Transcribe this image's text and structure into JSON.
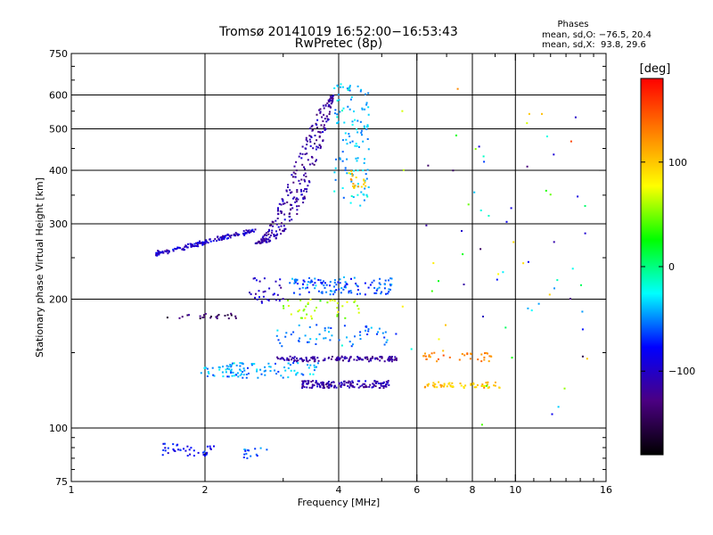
{
  "chart_data": {
    "type": "scatter",
    "title": "Tromsø 20141019 16:52:00−16:53:43",
    "subtitle": "RwPretec (8p)",
    "xlabel": "Frequency [MHz]",
    "ylabel": "Stationary phase Virtual Height [km]",
    "x_scale": "log",
    "y_scale": "log",
    "xlim": [
      1,
      16
    ],
    "ylim": [
      75,
      750
    ],
    "xticks": [
      1,
      2,
      4,
      6,
      8,
      10,
      16
    ],
    "yticks": [
      75,
      100,
      200,
      300,
      400,
      500,
      600,
      750
    ],
    "x_gridlines": [
      2,
      4,
      6,
      8,
      10
    ],
    "y_gridlines": [
      100,
      200,
      300,
      400,
      500,
      600
    ],
    "grid": true,
    "stats": {
      "heading": "Phases",
      "line_o": "mean, sd,O: −76.5, 20.4",
      "line_x": "mean, sd,X:  93.8, 29.6"
    },
    "colorbar": {
      "label": "[deg]",
      "range": [
        -180,
        180
      ],
      "ticks": [
        "100",
        "0",
        "−100"
      ],
      "tick_values": [
        100,
        0,
        -100
      ],
      "colors": [
        "#000000",
        "#4b0082",
        "#0000ff",
        "#00ffff",
        "#00ff00",
        "#ffff00",
        "#ff8000",
        "#ff0000"
      ]
    },
    "clusters": [
      {
        "f": [
          1.55,
          2.6
        ],
        "h": [
          255,
          290
        ],
        "phase": -100,
        "n": 150,
        "trend": "rising"
      },
      {
        "f": [
          2.6,
          3.9
        ],
        "h": [
          270,
          600
        ],
        "phase": -115,
        "n": 280,
        "trend": "curve"
      },
      {
        "f": [
          3.9,
          4.7
        ],
        "h": [
          330,
          640
        ],
        "phase": -40,
        "n": 120
      },
      {
        "f": [
          4.2,
          4.6
        ],
        "h": [
          360,
          400
        ],
        "phase": 100,
        "n": 20
      },
      {
        "f": [
          2.5,
          3.0
        ],
        "h": [
          195,
          225
        ],
        "phase": -100,
        "n": 30
      },
      {
        "f": [
          3.1,
          5.3
        ],
        "h": [
          205,
          225
        ],
        "phase": -60,
        "n": 120
      },
      {
        "f": [
          3.0,
          4.5
        ],
        "h": [
          180,
          200
        ],
        "phase": 60,
        "n": 40
      },
      {
        "f": [
          1.6,
          2.4
        ],
        "h": [
          180,
          185
        ],
        "phase": -140,
        "n": 25
      },
      {
        "f": [
          2.9,
          5.5
        ],
        "h": [
          155,
          175
        ],
        "phase": -50,
        "n": 60
      },
      {
        "f": [
          2.9,
          5.4
        ],
        "h": [
          143,
          147
        ],
        "phase": -115,
        "n": 130
      },
      {
        "f": [
          6.2,
          9.0
        ],
        "h": [
          143,
          150
        ],
        "phase": 130,
        "n": 35
      },
      {
        "f": [
          1.95,
          3.6
        ],
        "h": [
          131,
          142
        ],
        "phase": -45,
        "n": 110
      },
      {
        "f": [
          3.3,
          5.2
        ],
        "h": [
          124,
          129
        ],
        "phase": -110,
        "n": 150
      },
      {
        "f": [
          6.2,
          9.3
        ],
        "h": [
          124,
          128
        ],
        "phase": 100,
        "n": 60
      },
      {
        "f": [
          1.6,
          2.1
        ],
        "h": [
          86,
          92
        ],
        "phase": -80,
        "n": 40
      },
      {
        "f": [
          2.4,
          2.8
        ],
        "h": [
          85,
          90
        ],
        "phase": -60,
        "n": 15
      },
      {
        "f": [
          5.5,
          15.0
        ],
        "h": [
          100,
          620
        ],
        "phase": 0,
        "n": 70,
        "spread": true
      }
    ]
  }
}
